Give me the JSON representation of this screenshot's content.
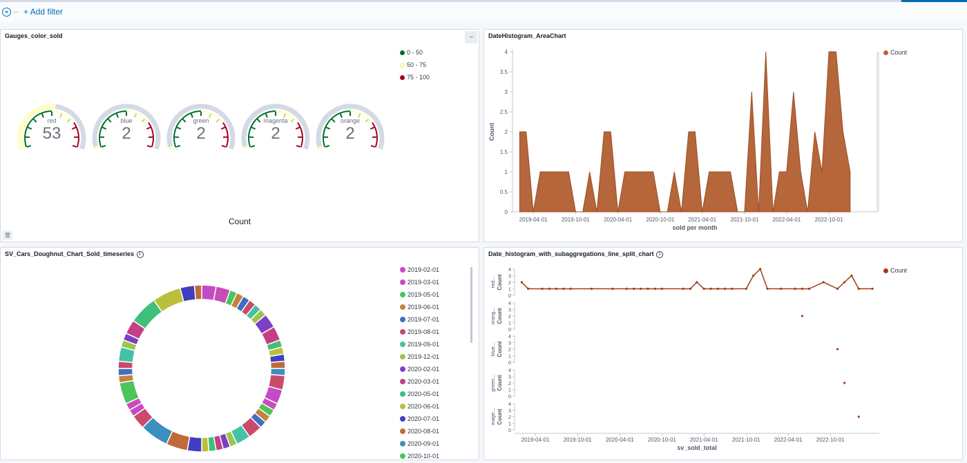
{
  "filter_bar": {
    "add_filter_label": "+ Add filter"
  },
  "panels": {
    "gauges": {
      "title": "Gauges_color_sold",
      "menu_label": "∙∙∙",
      "legend_toggle_label": "☰",
      "legend": [
        {
          "label": "0 - 50",
          "color": "#006e2d"
        },
        {
          "label": "50 - 75",
          "color": "#ffffc2"
        },
        {
          "label": "75 - 100",
          "color": "#a50026"
        }
      ],
      "gauges": [
        {
          "label": "red",
          "value": 53
        },
        {
          "label": "blue",
          "value": 2
        },
        {
          "label": "green",
          "value": 2
        },
        {
          "label": "magenta",
          "value": 2
        },
        {
          "label": "orange",
          "value": 2
        }
      ],
      "footer_label": "Count",
      "max": 100
    },
    "area": {
      "title": "DateHistogram_AreaChart",
      "legend_label": "Count",
      "color": "#b5663a"
    },
    "doughnut": {
      "title": "SV_Cars_Doughnut_Chart_Sold_timeseries",
      "info_icon": "i",
      "legend": [
        {
          "label": "2019-02-01",
          "color": "#c54ac8"
        },
        {
          "label": "2019-03-01",
          "color": "#c94cb8"
        },
        {
          "label": "2019-05-01",
          "color": "#4bc45a"
        },
        {
          "label": "2019-06-01",
          "color": "#c48240"
        },
        {
          "label": "2019-07-01",
          "color": "#3e6fc0"
        },
        {
          "label": "2019-08-01",
          "color": "#c94a6a"
        },
        {
          "label": "2019-09-01",
          "color": "#44c2a6"
        },
        {
          "label": "2019-12-01",
          "color": "#9ec54a"
        },
        {
          "label": "2020-02-01",
          "color": "#7d3fc4"
        },
        {
          "label": "2020-03-01",
          "color": "#c43f84"
        },
        {
          "label": "2020-05-01",
          "color": "#3fbf7a"
        },
        {
          "label": "2020-06-01",
          "color": "#bcbf3c"
        },
        {
          "label": "2020-07-01",
          "color": "#3f3fbf"
        },
        {
          "label": "2020-08-01",
          "color": "#bf6a3c"
        },
        {
          "label": "2020-09-01",
          "color": "#3c8fbf"
        },
        {
          "label": "2020-10-01",
          "color": "#4bc45a"
        }
      ]
    },
    "split": {
      "title": "Date_histogram_with_subaggregations_line_split_chart",
      "info_icon": "i",
      "legend_label": "Count",
      "color": "#a23b12"
    }
  },
  "chart_data": [
    {
      "type": "area",
      "title": "DateHistogram_AreaChart",
      "xlabel": "sold per month",
      "ylabel": "Count",
      "ylim": [
        0,
        4
      ],
      "y_ticks": [
        "0",
        "0.5",
        "1",
        "1.5",
        "2",
        "2.5",
        "3",
        "3.5",
        "4"
      ],
      "x_tick_labels": [
        "2019-04-01",
        "2019-10-01",
        "2020-04-01",
        "2020-10-01",
        "2021-04-01",
        "2021-10-01",
        "2022-04-01",
        "2022-10-01"
      ],
      "series": [
        {
          "name": "Count",
          "points": [
            [
              "2019-02-01",
              2
            ],
            [
              "2019-03-01",
              2
            ],
            [
              "2019-04-01",
              0
            ],
            [
              "2019-05-01",
              1
            ],
            [
              "2019-06-01",
              1
            ],
            [
              "2019-07-01",
              1
            ],
            [
              "2019-08-01",
              1
            ],
            [
              "2019-09-01",
              1
            ],
            [
              "2019-10-01",
              0
            ],
            [
              "2019-11-01",
              0
            ],
            [
              "2019-12-01",
              1
            ],
            [
              "2020-01-01",
              0
            ],
            [
              "2020-02-01",
              2
            ],
            [
              "2020-03-01",
              2
            ],
            [
              "2020-04-01",
              0
            ],
            [
              "2020-05-01",
              1
            ],
            [
              "2020-06-01",
              1
            ],
            [
              "2020-07-01",
              1
            ],
            [
              "2020-08-01",
              1
            ],
            [
              "2020-09-01",
              1
            ],
            [
              "2020-10-01",
              0
            ],
            [
              "2020-11-01",
              0
            ],
            [
              "2020-12-01",
              1
            ],
            [
              "2021-01-01",
              0
            ],
            [
              "2021-02-01",
              2
            ],
            [
              "2021-03-01",
              2
            ],
            [
              "2021-04-01",
              0
            ],
            [
              "2021-05-01",
              1
            ],
            [
              "2021-06-01",
              1
            ],
            [
              "2021-07-01",
              1
            ],
            [
              "2021-08-01",
              1
            ],
            [
              "2021-09-01",
              0
            ],
            [
              "2021-10-01",
              0
            ],
            [
              "2021-11-01",
              3
            ],
            [
              "2021-12-01",
              0
            ],
            [
              "2022-01-01",
              4
            ],
            [
              "2022-02-01",
              0
            ],
            [
              "2022-03-01",
              1
            ],
            [
              "2022-04-01",
              1
            ],
            [
              "2022-05-01",
              3
            ],
            [
              "2022-06-01",
              1
            ],
            [
              "2022-07-01",
              0
            ],
            [
              "2022-08-01",
              2
            ],
            [
              "2022-09-01",
              1
            ],
            [
              "2022-10-01",
              4
            ],
            [
              "2022-11-01",
              4
            ],
            [
              "2022-12-01",
              2
            ],
            [
              "2023-01-01",
              1
            ]
          ]
        }
      ]
    },
    {
      "type": "pie",
      "title": "SV_Cars_Doughnut_Chart_Sold_timeseries",
      "values": [
        2,
        2,
        1,
        1,
        1,
        1,
        1,
        1,
        2,
        2,
        1,
        1,
        1,
        1,
        1,
        2,
        2,
        1,
        1,
        1,
        1,
        2,
        2,
        1,
        1,
        1,
        1,
        1,
        2,
        3,
        4,
        2,
        1,
        1,
        3,
        1,
        1,
        1,
        2,
        1,
        1,
        2,
        4,
        4,
        2,
        1
      ],
      "colors": [
        "#c54ac8",
        "#c94cb8",
        "#4bc45a",
        "#c48240",
        "#3e6fc0",
        "#c94a6a",
        "#44c2a6",
        "#9ec54a",
        "#7d3fc4",
        "#c43f84",
        "#3fbf7a",
        "#bcbf3c",
        "#3f3fbf",
        "#bf6a3c",
        "#3c8fbf",
        "#c94a6a"
      ]
    },
    {
      "type": "line",
      "title": "Date_histogram_with_subaggregations_line_split_chart",
      "xlabel": "sv_sold_total",
      "x_tick_labels": [
        "2019-04-01",
        "2019-10-01",
        "2020-04-01",
        "2020-10-01",
        "2021-04-01",
        "2021-10-01",
        "2022-04-01",
        "2022-10-01"
      ],
      "ylim": [
        0,
        4
      ],
      "y_ticks": [
        "0",
        "1",
        "2",
        "3",
        "4"
      ],
      "rows": [
        {
          "label": "red...",
          "ylabel": "Count",
          "points": [
            [
              "2019-02-01",
              2
            ],
            [
              "2019-03-01",
              1
            ],
            [
              "2019-05-01",
              1
            ],
            [
              "2019-06-01",
              1
            ],
            [
              "2019-07-01",
              1
            ],
            [
              "2019-08-01",
              1
            ],
            [
              "2019-09-01",
              1
            ],
            [
              "2019-12-01",
              1
            ],
            [
              "2020-03-01",
              1
            ],
            [
              "2020-05-01",
              1
            ],
            [
              "2020-06-01",
              1
            ],
            [
              "2020-07-01",
              1
            ],
            [
              "2020-08-01",
              1
            ],
            [
              "2020-09-01",
              1
            ],
            [
              "2020-10-01",
              1
            ],
            [
              "2021-01-01",
              1
            ],
            [
              "2021-02-01",
              1
            ],
            [
              "2021-03-01",
              2
            ],
            [
              "2021-04-01",
              1
            ],
            [
              "2021-05-01",
              1
            ],
            [
              "2021-06-01",
              1
            ],
            [
              "2021-07-01",
              1
            ],
            [
              "2021-08-01",
              1
            ],
            [
              "2021-10-01",
              1
            ],
            [
              "2021-11-01",
              3
            ],
            [
              "2021-12-01",
              4
            ],
            [
              "2022-01-01",
              1
            ],
            [
              "2022-03-01",
              1
            ],
            [
              "2022-05-01",
              1
            ],
            [
              "2022-06-01",
              1
            ],
            [
              "2022-07-01",
              1
            ],
            [
              "2022-09-01",
              2
            ],
            [
              "2022-11-01",
              1
            ],
            [
              "2022-12-01",
              2
            ],
            [
              "2023-01-01",
              3
            ],
            [
              "2023-02-01",
              1
            ],
            [
              "2023-04-01",
              1
            ]
          ]
        },
        {
          "label": "orang...",
          "ylabel": "Count",
          "points": [
            [
              "2022-06-01",
              2
            ]
          ]
        },
        {
          "label": "blue...",
          "ylabel": "Count",
          "points": [
            [
              "2022-11-01",
              2
            ]
          ]
        },
        {
          "label": "green...",
          "ylabel": "Count",
          "points": [
            [
              "2022-12-01",
              2
            ]
          ]
        },
        {
          "label": "mage...",
          "ylabel": "Count",
          "points": [
            [
              "2023-02-01",
              2
            ]
          ]
        }
      ]
    }
  ]
}
